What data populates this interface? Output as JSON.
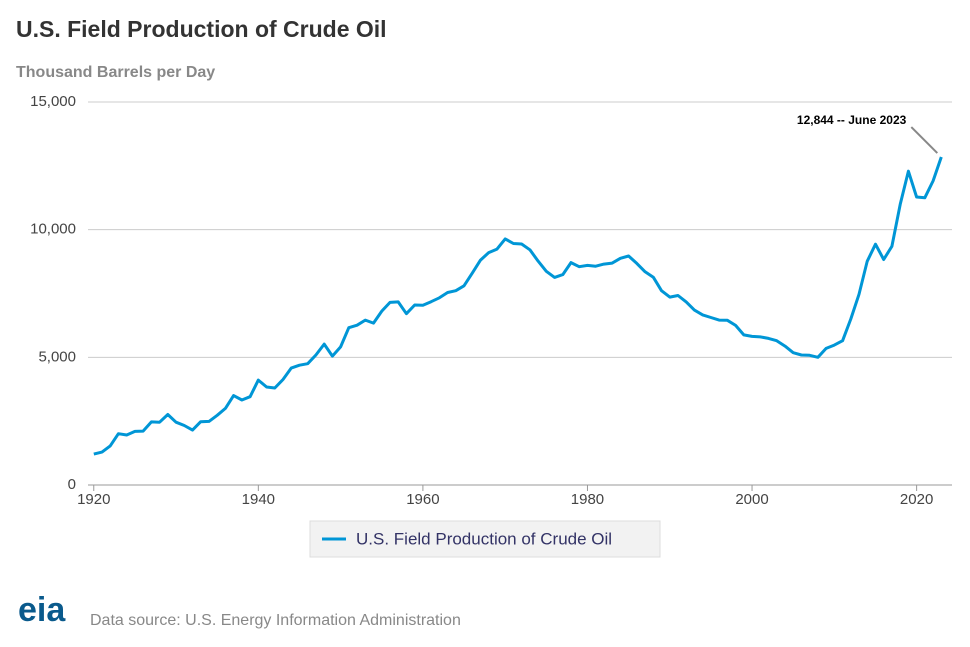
{
  "chart_data": {
    "type": "line",
    "title": "U.S. Field Production of Crude Oil",
    "y_label": "Thousand Barrels per Day",
    "x": [
      1920,
      1921,
      1922,
      1923,
      1924,
      1925,
      1926,
      1927,
      1928,
      1929,
      1930,
      1931,
      1932,
      1933,
      1934,
      1935,
      1936,
      1937,
      1938,
      1939,
      1940,
      1941,
      1942,
      1943,
      1944,
      1945,
      1946,
      1947,
      1948,
      1949,
      1950,
      1951,
      1952,
      1953,
      1954,
      1955,
      1956,
      1957,
      1958,
      1959,
      1960,
      1961,
      1962,
      1963,
      1964,
      1965,
      1966,
      1967,
      1968,
      1969,
      1970,
      1971,
      1972,
      1973,
      1974,
      1975,
      1976,
      1977,
      1978,
      1979,
      1980,
      1981,
      1982,
      1983,
      1984,
      1985,
      1986,
      1987,
      1988,
      1989,
      1990,
      1991,
      1992,
      1993,
      1994,
      1995,
      1996,
      1997,
      1998,
      1999,
      2000,
      2001,
      2002,
      2003,
      2004,
      2005,
      2006,
      2007,
      2008,
      2009,
      2010,
      2011,
      2012,
      2013,
      2014,
      2015,
      2016,
      2017,
      2018,
      2019,
      2020,
      2021,
      2022,
      2023
    ],
    "series": [
      {
        "name": "U.S. Field Production of Crude Oil",
        "color": "#0096d6",
        "values": [
          1210,
          1290,
          1530,
          2010,
          1960,
          2100,
          2110,
          2470,
          2460,
          2760,
          2460,
          2330,
          2150,
          2480,
          2490,
          2730,
          3000,
          3500,
          3330,
          3460,
          4110,
          3840,
          3800,
          4130,
          4580,
          4690,
          4750,
          5090,
          5520,
          5050,
          5410,
          6160,
          6260,
          6460,
          6340,
          6810,
          7150,
          7170,
          6710,
          7050,
          7040,
          7180,
          7330,
          7540,
          7610,
          7800,
          8300,
          8810,
          9100,
          9240,
          9640,
          9460,
          9440,
          9210,
          8770,
          8370,
          8130,
          8240,
          8710,
          8550,
          8600,
          8570,
          8650,
          8690,
          8880,
          8970,
          8680,
          8350,
          8140,
          7610,
          7360,
          7420,
          7170,
          6850,
          6660,
          6560,
          6460,
          6450,
          6250,
          5880,
          5820,
          5800,
          5740,
          5650,
          5440,
          5180,
          5090,
          5080,
          5000,
          5350,
          5480,
          5650,
          6500,
          7470,
          8760,
          9430,
          8830,
          9350,
          10990,
          12290,
          11280,
          11250,
          11910,
          12844
        ]
      }
    ],
    "annotation": "12,844 -- June 2023",
    "xlim": [
      1919.3,
      2024.3
    ],
    "xticks": [
      1920,
      1940,
      1960,
      1980,
      2000,
      2020
    ],
    "ylim": [
      0,
      15000
    ],
    "yticks": [
      0,
      {
        "value": 5000,
        "label": "5,000"
      },
      {
        "value": 10000,
        "label": "10,000"
      },
      {
        "value": 15000,
        "label": "15,000"
      }
    ],
    "grid": true,
    "source": "Data source: U.S. Energy Information Administration",
    "logo": "eia"
  }
}
